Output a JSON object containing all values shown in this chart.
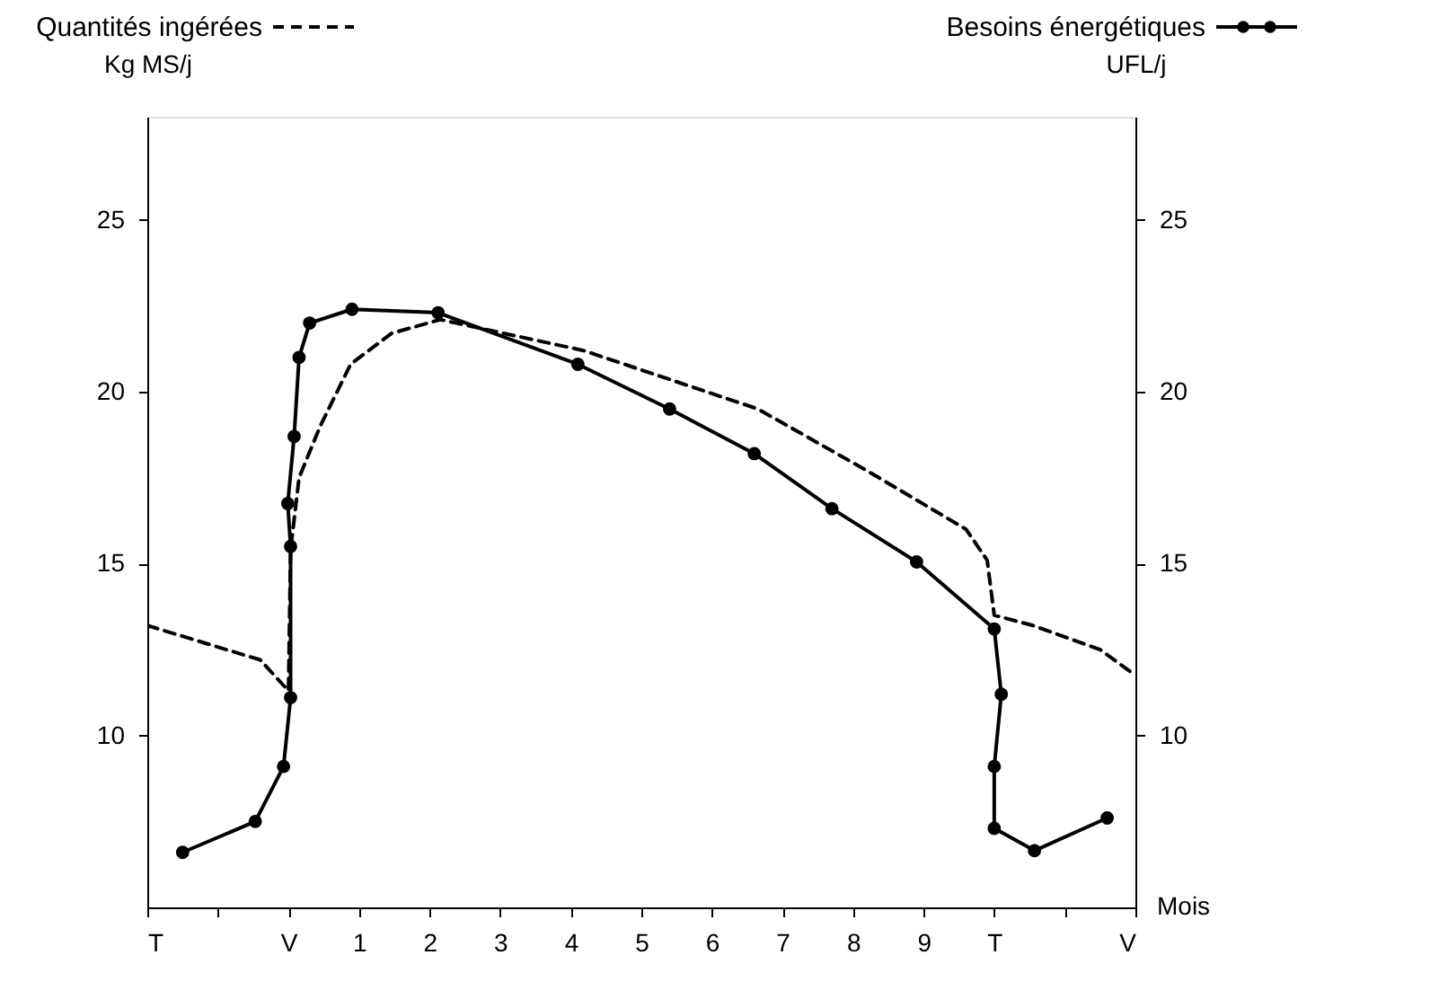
{
  "chart_data": {
    "type": "line",
    "xlabel": "Mois",
    "ylabel": "Kg MS/j",
    "y2label": "UFL/j",
    "xlim": [
      -2,
      12
    ],
    "xticks": [
      {
        "value": -2,
        "label": "T"
      },
      {
        "value": -1,
        "label": null
      },
      {
        "value": 0,
        "label": "V"
      },
      1,
      2,
      3,
      4,
      5,
      6,
      7,
      8,
      9,
      {
        "value": 10,
        "label": "T"
      },
      {
        "value": 11,
        "label": null
      },
      {
        "value": 12,
        "label": "V"
      }
    ],
    "ylim": [
      5,
      28
    ],
    "yticks": [
      10,
      15,
      20,
      25
    ],
    "y2lim": [
      5,
      28
    ],
    "y2ticks": [
      10,
      15,
      20,
      25
    ],
    "grid": false,
    "legend": "top",
    "series": [
      {
        "name": "Quantités ingérées",
        "color": "#000000",
        "line_style": "dashed",
        "marker": "none",
        "x": [
          -2,
          -0.4,
          0,
          0.03,
          0.15,
          0.45,
          0.88,
          1.46,
          2.15,
          4.18,
          6.65,
          8.2,
          9.6,
          9.9,
          10.0,
          10.55,
          11.5,
          12
        ],
        "values": [
          13.2,
          12.2,
          11.3,
          15.4,
          17.5,
          19.0,
          20.8,
          21.7,
          22.1,
          21.2,
          19.5,
          17.7,
          16.0,
          15.1,
          13.5,
          13.2,
          12.5,
          11.75
        ]
      },
      {
        "name": "Besoins énergétiques",
        "color": "#000000",
        "line_style": "solid",
        "marker": "circle",
        "axis": "y2",
        "x": [
          -1.5,
          -0.47,
          -0.07,
          0.03,
          0.03,
          -0.01,
          0.08,
          0.15,
          0.3,
          0.9,
          2.12,
          4.1,
          5.4,
          6.6,
          7.7,
          8.9,
          10.0,
          10.1,
          10.0,
          10.0,
          10.57,
          11.6
        ],
        "values": [
          6.6,
          7.5,
          9.1,
          11.1,
          15.5,
          16.75,
          18.7,
          21.0,
          22.0,
          22.4,
          22.3,
          20.8,
          19.5,
          18.2,
          16.6,
          15.05,
          13.1,
          11.2,
          9.1,
          7.3,
          6.65,
          7.6
        ]
      }
    ]
  }
}
